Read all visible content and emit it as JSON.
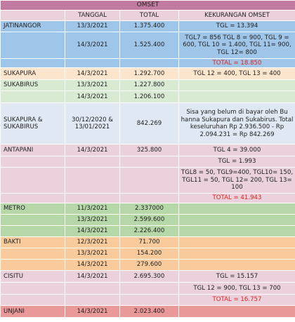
{
  "sheet_title": "OMSET",
  "columns": [
    "",
    "TANGGAL",
    "TOTAL",
    "KEKURANGAN OMSET"
  ],
  "colors": {
    "title": "#c27ba0",
    "header": "#ead1dc",
    "jatinangor": "#9fc5e8",
    "sukapura": "#fce5cd",
    "sukabirus": "#d9ead3",
    "gabungan": "#dfe8f3",
    "antapani": "#ead1dc",
    "metro": "#b6d7a8",
    "bakti": "#f9cb9c",
    "cisitu": "#ead1dc",
    "unjani": "#ea9999",
    "red_text": "#e02020"
  },
  "rows": [
    {
      "name": "JATINANGOR",
      "date": "13/3/2021",
      "total": "1.375.400",
      "note": "TGL = 13.394",
      "color": "jatinangor",
      "h": 16
    },
    {
      "name": "",
      "date": "14/3/2021",
      "total": "1.525.400",
      "note": "TGL7 = 856 TGL 8 = 900, TGL 9 = 600, TGL 10 = 1.400, TGL 11= 900, TGL 12= 800",
      "color": "jatinangor",
      "h": 38
    },
    {
      "name": "",
      "date": "",
      "total": "",
      "note": "TOTAL = 18.850",
      "color": "jatinangor",
      "red": true,
      "h": 13
    },
    {
      "name": "SUKAPURA",
      "date": "14/3/2021",
      "total": "1.292.700",
      "note": "TGL 12 = 400, TGL 13 = 400",
      "color": "sukapura",
      "h": 17
    },
    {
      "name": "SUKABIRUS",
      "date": "13/3/2021",
      "total": "1.227.800",
      "note": "",
      "color": "sukabirus",
      "h": 16
    },
    {
      "name": "",
      "date": "14/3/2021",
      "total": "1.206.100",
      "note": "",
      "color": "sukabirus",
      "h": 17
    },
    {
      "name": "SUKAPURA & SUKABIRUS",
      "date": "30/12/2020 & 13/01/2021",
      "total": "842.269",
      "note": "Sisa yang belum di bayar oleh Bu hanna Sukapura dan Sukabirus. Total keseluruhan Rp 2.936.500 - Rp 2.094.231 = Rp 842.269",
      "color": "gabungan",
      "h": 59
    },
    {
      "name": "ANTAPANI",
      "date": "14/3/2021",
      "total": "325.800",
      "note": "TGL 4 = 39.000",
      "color": "antapani",
      "h": 17
    },
    {
      "name": "",
      "date": "",
      "total": "",
      "note": "TGL = 1.993",
      "color": "antapani",
      "h": 16
    },
    {
      "name": "",
      "date": "",
      "total": "",
      "note": "TGL8 = 50, TGL9=400, TGL10= 150, TGL11 = 50, TGL 12= 200, TGL 13= 100",
      "color": "antapani",
      "h": 37
    },
    {
      "name": "",
      "date": "",
      "total": "",
      "note": "TOTAL = 41.943",
      "color": "antapani",
      "red": true,
      "h": 14
    },
    {
      "name": "METRO",
      "date": "11/3/2021",
      "total": "2.337000",
      "note": "",
      "color": "metro",
      "h": 16
    },
    {
      "name": "",
      "date": "13/3/2021",
      "total": "2.599.600",
      "note": "",
      "color": "metro",
      "h": 16
    },
    {
      "name": "",
      "date": "14/3/2021",
      "total": "2.226.400",
      "note": "",
      "color": "metro",
      "h": 16
    },
    {
      "name": "BAKTI",
      "date": "12/3/2021",
      "total": "71.700",
      "note": "",
      "color": "bakti",
      "h": 16
    },
    {
      "name": "",
      "date": "13/3/2021",
      "total": "154.200",
      "note": "",
      "color": "bakti",
      "h": 16
    },
    {
      "name": "",
      "date": "14/3/2021",
      "total": "279.600",
      "note": "",
      "color": "bakti",
      "h": 16
    },
    {
      "name": "CISITU",
      "date": "14/3/2021",
      "total": "2.695.300",
      "note": "TGL = 15.157",
      "color": "cisitu",
      "h": 17
    },
    {
      "name": "",
      "date": "",
      "total": "",
      "note": "TGL 12 = 900, TGL 13 = 700",
      "color": "cisitu",
      "h": 17
    },
    {
      "name": "",
      "date": "",
      "total": "",
      "note": "TOTAL = 16.757",
      "color": "cisitu",
      "red": true,
      "h": 16
    },
    {
      "name": "UNJANI",
      "date": "14/3/2021",
      "total": "2.023.400",
      "note": "",
      "color": "unjani",
      "h": 17
    }
  ]
}
